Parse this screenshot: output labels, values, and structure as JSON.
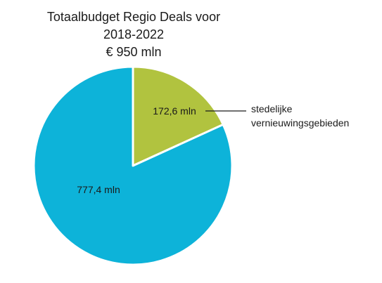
{
  "chart_data": {
    "type": "pie",
    "title": [
      "Totaalbudget Regio Deals voor",
      "2018-2022",
      "€ 950 mln"
    ],
    "slices": [
      {
        "label": "172,6 mln",
        "value": 172.6,
        "color": "#b1c33f",
        "callout": [
          "stedelijke",
          "vernieuwingsgebieden"
        ]
      },
      {
        "label": "777,4 mln",
        "value": 777.4,
        "color": "#0db3d9"
      }
    ],
    "legend": "none"
  }
}
